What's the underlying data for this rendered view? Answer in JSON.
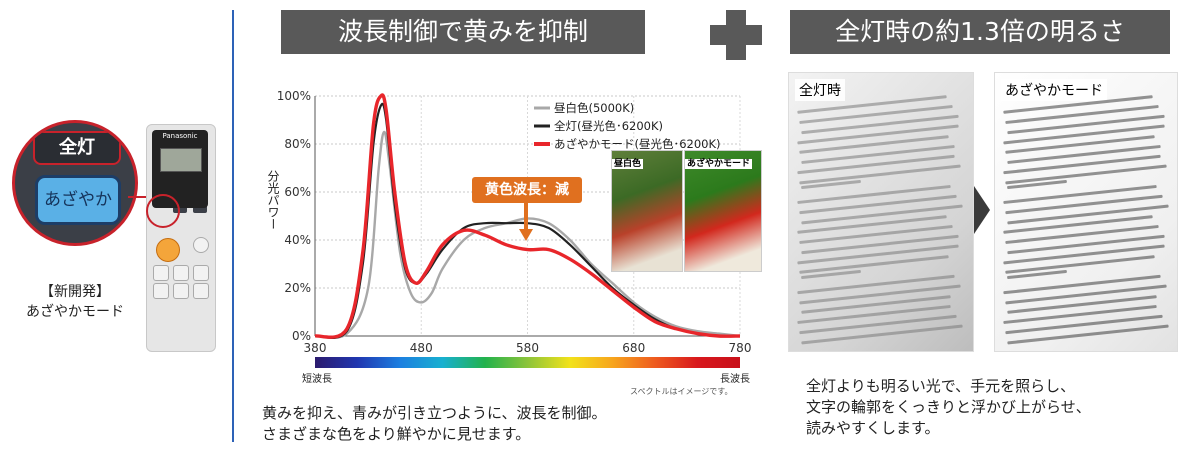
{
  "left_panel": {
    "remote_top_button": "全灯",
    "remote_mode_button": "あざやか",
    "new_label_line1": "【新開発】",
    "new_label_line2": "あざやかモード",
    "remote_brand": "Panasonic"
  },
  "banners": {
    "center": "波長制御で黄みを抑制",
    "right": "全灯時の約1.3倍の明るさ"
  },
  "chart": {
    "ylabel": "分光パワー",
    "callout": "黄色波長：減",
    "spectrum_short": "短波長",
    "spectrum_long": "長波長",
    "spectrum_note": "スペクトルはイメージです。",
    "photo_left_label": "昼白色",
    "photo_right_label": "あざやかモード",
    "colors": {
      "gray": "#a8a8a8",
      "black": "#222222",
      "red": "#e8262b"
    }
  },
  "chart_data": {
    "type": "line",
    "xlim": [
      380,
      780
    ],
    "ylim": [
      0,
      100
    ],
    "xticks": [
      "380",
      "480",
      "580",
      "680",
      "780"
    ],
    "yticks": [
      "0%",
      "20%",
      "40%",
      "60%",
      "80%",
      "100%"
    ],
    "series": [
      {
        "name": "昼白色(5000K)",
        "x": [
          380,
          410,
          430,
          440,
          445,
          450,
          460,
          470,
          480,
          490,
          500,
          520,
          540,
          560,
          580,
          600,
          620,
          640,
          660,
          680,
          700,
          720,
          740,
          760,
          780
        ],
        "y": [
          0,
          1,
          20,
          70,
          85,
          72,
          35,
          18,
          14,
          18,
          28,
          40,
          45,
          47,
          49,
          47,
          40,
          30,
          22,
          14,
          8,
          4,
          2,
          1,
          0
        ]
      },
      {
        "name": "全灯(昼光色･6200K)",
        "x": [
          380,
          410,
          425,
          435,
          442,
          447,
          455,
          465,
          475,
          485,
          500,
          520,
          540,
          560,
          580,
          600,
          620,
          640,
          660,
          680,
          700,
          720,
          740,
          760,
          780
        ],
        "y": [
          0,
          2,
          30,
          80,
          96,
          90,
          55,
          28,
          22,
          26,
          36,
          45,
          47,
          47,
          47,
          45,
          38,
          29,
          20,
          13,
          7,
          3,
          1,
          0,
          0
        ]
      },
      {
        "name": "あざやかモード(昼光色･6200K)",
        "x": [
          380,
          410,
          425,
          435,
          442,
          447,
          455,
          465,
          475,
          485,
          500,
          520,
          540,
          560,
          580,
          600,
          620,
          640,
          660,
          680,
          700,
          720,
          740,
          760,
          780
        ],
        "y": [
          0,
          3,
          35,
          88,
          100,
          94,
          60,
          30,
          22,
          27,
          38,
          44,
          42,
          38,
          36,
          36,
          32,
          26,
          19,
          12,
          6,
          3,
          1,
          0,
          0
        ]
      }
    ]
  },
  "captions": {
    "chart_line1": "黄みを抑え、青みが引き立つように、波長を制御。",
    "chart_line2": "さまざまな色をより鮮やかに見せます。",
    "right_line1": "全灯よりも明るい光で、手元を照らし、",
    "right_line2": "文字の輪郭をくっきりと浮かび上がらせ、",
    "right_line3": "読みやすくします。"
  },
  "panels": {
    "left_label": "全灯時",
    "right_label": "あざやかモード"
  }
}
